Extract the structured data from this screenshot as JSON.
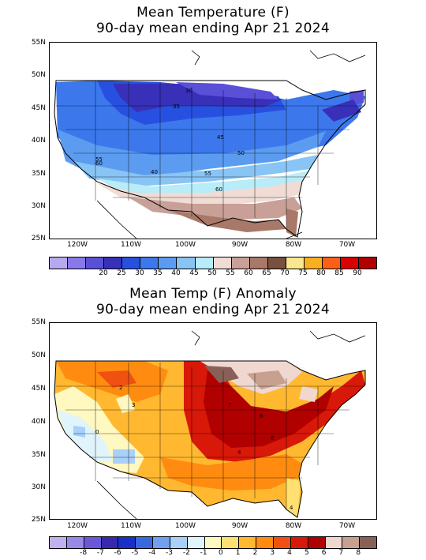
{
  "panel1": {
    "title_line1": "Mean Temperature (F)",
    "title_line2": "90-day mean ending Apr 21 2024",
    "lat_labels": [
      "55N",
      "50N",
      "45N",
      "40N",
      "35N",
      "30N",
      "25N"
    ],
    "lon_labels": [
      "120W",
      "110W",
      "100W",
      "90W",
      "80W",
      "70W"
    ],
    "colorbar": {
      "colors": [
        "#b8a8f0",
        "#8878e8",
        "#5a50d8",
        "#3830b8",
        "#2850e0",
        "#3c78ec",
        "#5c9cf0",
        "#88c4f4",
        "#b8ecf8",
        "#f0dcd4",
        "#c8a098",
        "#a87868",
        "#785040",
        "#f8e890",
        "#f8b020",
        "#f86018",
        "#d80000",
        "#b00000"
      ],
      "labels": [
        "20",
        "25",
        "30",
        "35",
        "40",
        "45",
        "50",
        "55",
        "60",
        "65",
        "70",
        "75",
        "80",
        "85",
        "90"
      ]
    },
    "contour_labels": [
      "30",
      "35",
      "45",
      "50",
      "55",
      "40",
      "55",
      "60",
      "60"
    ]
  },
  "panel2": {
    "title_line1": "Mean Temp (F) Anomaly",
    "title_line2": "90-day mean ending Apr 21 2024",
    "lat_labels": [
      "55N",
      "50N",
      "45N",
      "40N",
      "35N",
      "30N",
      "25N"
    ],
    "lon_labels": [
      "120W",
      "110W",
      "100W",
      "90W",
      "80W",
      "70W"
    ],
    "colorbar": {
      "colors": [
        "#c0b0f0",
        "#9888e8",
        "#6a58d8",
        "#3828b0",
        "#1830c8",
        "#3868e0",
        "#70a0f0",
        "#a8d0f8",
        "#e0f4fc",
        "#fff8c0",
        "#ffe070",
        "#ffb830",
        "#ff8c10",
        "#f05010",
        "#d81808",
        "#b00000",
        "#f0d8d0",
        "#c8a090",
        "#886058"
      ],
      "labels": [
        "-8",
        "-7",
        "-6",
        "-5",
        "-4",
        "-3",
        "-2",
        "-1",
        "0",
        "1",
        "2",
        "3",
        "4",
        "5",
        "6",
        "7",
        "8"
      ]
    },
    "contour_labels": [
      "2",
      "3",
      "0",
      "7",
      "6",
      "6",
      "4",
      "4"
    ]
  }
}
